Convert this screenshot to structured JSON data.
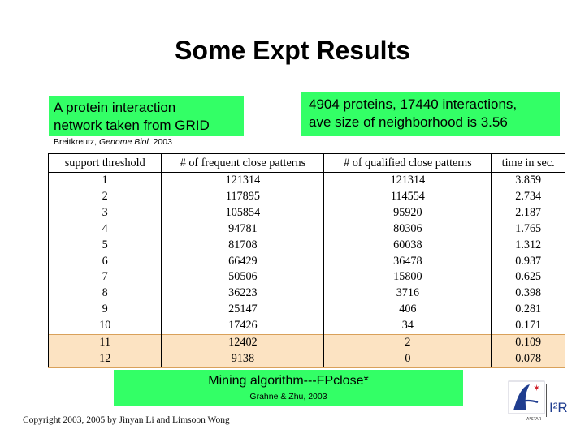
{
  "title": "Some Expt Results",
  "box_left": {
    "line1": "A protein interaction",
    "line2": "network taken from GRID"
  },
  "box_right": {
    "line1": "4904 proteins, 17440 interactions,",
    "line2": "ave size of neighborhood is 3.56"
  },
  "citation": {
    "authors": "Breitkreutz,",
    "journal": "Genome Biol.",
    "year": "2003"
  },
  "table": {
    "headers": [
      "support threshold",
      "# of frequent close patterns",
      "# of qualified close patterns",
      "time in sec."
    ],
    "rows": [
      [
        "1",
        "121314",
        "121314",
        "3.859"
      ],
      [
        "2",
        "117895",
        "114554",
        "2.734"
      ],
      [
        "3",
        "105854",
        "95920",
        "2.187"
      ],
      [
        "4",
        "94781",
        "80306",
        "1.765"
      ],
      [
        "5",
        "81708",
        "60038",
        "1.312"
      ],
      [
        "6",
        "66429",
        "36478",
        "0.937"
      ],
      [
        "7",
        "50506",
        "15800",
        "0.625"
      ],
      [
        "8",
        "36223",
        "3716",
        "0.398"
      ],
      [
        "9",
        "25147",
        "406",
        "0.281"
      ],
      [
        "10",
        "17426",
        "34",
        "0.171"
      ],
      [
        "11",
        "12402",
        "2",
        "0.109"
      ],
      [
        "12",
        "9138",
        "0",
        "0.078"
      ]
    ],
    "highlight_color": "#fce3c2"
  },
  "box_bottom": {
    "main": "Mining algorithm---FPclose*",
    "sub": "Grahne & Zhu, 2003"
  },
  "footer": "Copyright 2003, 2005 by Jinyan Li and Limsoon Wong",
  "logo": {
    "brand_text": "A*STAR",
    "org_text": "I²R"
  },
  "colors": {
    "green_box": "#33ff66"
  }
}
